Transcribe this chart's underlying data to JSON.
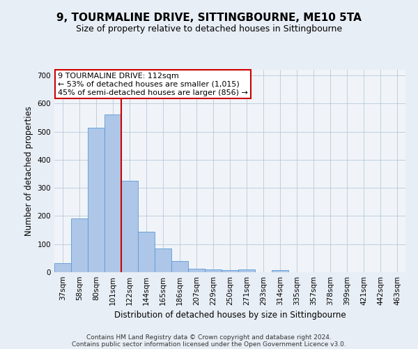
{
  "title": "9, TOURMALINE DRIVE, SITTINGBOURNE, ME10 5TA",
  "subtitle": "Size of property relative to detached houses in Sittingbourne",
  "xlabel": "Distribution of detached houses by size in Sittingbourne",
  "ylabel": "Number of detached properties",
  "categories": [
    "37sqm",
    "58sqm",
    "80sqm",
    "101sqm",
    "122sqm",
    "144sqm",
    "165sqm",
    "186sqm",
    "207sqm",
    "229sqm",
    "250sqm",
    "271sqm",
    "293sqm",
    "314sqm",
    "335sqm",
    "357sqm",
    "378sqm",
    "399sqm",
    "421sqm",
    "442sqm",
    "463sqm"
  ],
  "values": [
    32,
    190,
    515,
    560,
    325,
    143,
    85,
    40,
    13,
    9,
    8,
    9,
    0,
    8,
    0,
    0,
    0,
    0,
    0,
    0,
    0
  ],
  "bar_color": "#aec6e8",
  "bar_edge_color": "#5b9bd5",
  "vline_x": 3.5,
  "vline_color": "#cc0000",
  "annotation_line1": "9 TOURMALINE DRIVE: 112sqm",
  "annotation_line2": "← 53% of detached houses are smaller (1,015)",
  "annotation_line3": "45% of semi-detached houses are larger (856) →",
  "annotation_box_color": "#ffffff",
  "annotation_box_edge": "#cc0000",
  "ylim": [
    0,
    720
  ],
  "yticks": [
    0,
    100,
    200,
    300,
    400,
    500,
    600,
    700
  ],
  "footer_line1": "Contains HM Land Registry data © Crown copyright and database right 2024.",
  "footer_line2": "Contains public sector information licensed under the Open Government Licence v3.0.",
  "bg_color": "#e8eef5",
  "plot_bg_color": "#f0f4f9",
  "title_fontsize": 11,
  "subtitle_fontsize": 9,
  "axis_label_fontsize": 8.5,
  "tick_fontsize": 7.5,
  "footer_fontsize": 6.5,
  "annotation_fontsize": 8
}
